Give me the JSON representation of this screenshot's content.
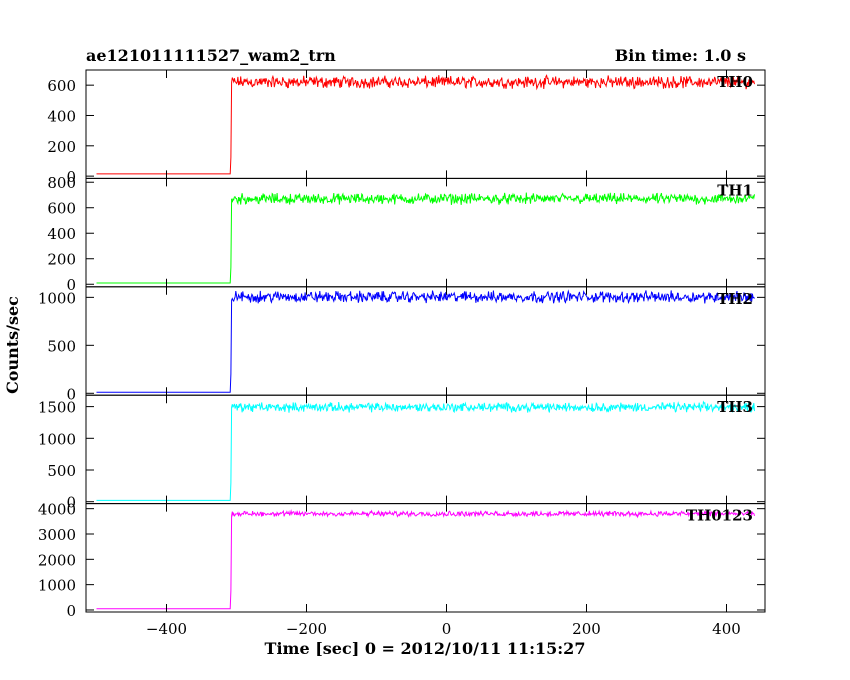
{
  "header": {
    "title": "ae121011111527_wam2_trn",
    "bin_time": "Bin time: 1.0 s"
  },
  "chart_data": {
    "type": "line",
    "title": "ae121011111527_wam2_trn",
    "subtitle": "Bin time: 1.0 s",
    "xlabel": "Time [sec] 0 = 2012/10/11 11:15:27",
    "ylabel": "Counts/sec",
    "xlim": [
      -515,
      455
    ],
    "x_ticks": [
      -400,
      -200,
      0,
      200,
      400
    ],
    "x_tick_labels": [
      "−400",
      "−200",
      "0",
      "200",
      "400"
    ],
    "onset_time": -308,
    "time_range": [
      -500,
      440
    ],
    "legend_position": "top-right of each panel",
    "grid": false,
    "panels": [
      {
        "name": "TH0",
        "color": "#ff0000",
        "ylim": [
          -15,
          700
        ],
        "y_ticks": [
          0,
          200,
          400,
          600
        ],
        "y_tick_labels": [
          "0",
          "200",
          "400",
          "600"
        ],
        "pre_onset_level": 15,
        "post_onset_level": 620,
        "noise_amplitude": 30
      },
      {
        "name": "TH1",
        "color": "#00ff00",
        "ylim": [
          -20,
          830
        ],
        "y_ticks": [
          0,
          200,
          400,
          600,
          800
        ],
        "y_tick_labels": [
          "0",
          "200",
          "400",
          "600",
          "800"
        ],
        "pre_onset_level": 10,
        "post_onset_level": 670,
        "noise_amplitude": 32
      },
      {
        "name": "TH2",
        "color": "#0000ff",
        "ylim": [
          -20,
          1110
        ],
        "y_ticks": [
          0,
          500,
          1000
        ],
        "y_tick_labels": [
          "0",
          "500",
          "1000"
        ],
        "pre_onset_level": 10,
        "post_onset_level": 1005,
        "noise_amplitude": 45
      },
      {
        "name": "TH3",
        "color": "#00ffff",
        "ylim": [
          -30,
          1680
        ],
        "y_ticks": [
          0,
          500,
          1000,
          1500
        ],
        "y_tick_labels": [
          "0",
          "500",
          "1000",
          "1500"
        ],
        "pre_onset_level": 20,
        "post_onset_level": 1490,
        "noise_amplitude": 55
      },
      {
        "name": "TH0123",
        "color": "#ff00ff",
        "ylim": [
          -80,
          4200
        ],
        "y_ticks": [
          0,
          1000,
          2000,
          3000,
          4000
        ],
        "y_tick_labels": [
          "0",
          "1000",
          "2000",
          "3000",
          "4000"
        ],
        "pre_onset_level": 50,
        "post_onset_level": 3800,
        "noise_amplitude": 80
      }
    ]
  }
}
